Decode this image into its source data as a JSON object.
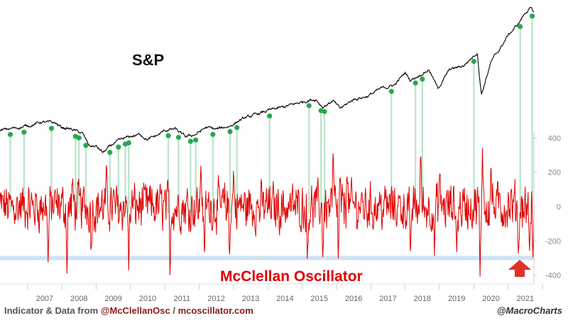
{
  "chart_data": {
    "type": "line",
    "panels": [
      {
        "name": "S&P",
        "label": "S&P",
        "axis": "hidden",
        "color": "#000000"
      },
      {
        "name": "McClellan Oscillator",
        "label": "McClellan Oscillator",
        "color": "#e00000",
        "y_ticks": [
          "400",
          "200",
          "0",
          "-200",
          "-400"
        ],
        "ylim": [
          -420,
          420
        ],
        "threshold": -300,
        "threshold_color": "#cfe3f5"
      }
    ],
    "x_ticks": [
      "2007",
      "2008",
      "2009",
      "2010",
      "2011",
      "2012",
      "2013",
      "2014",
      "2015",
      "2016",
      "2017",
      "2018",
      "2019",
      "2020",
      "2021"
    ],
    "xlim": [
      2006.2,
      2021.75
    ],
    "sp_anchors": [
      [
        2006.2,
        1.3
      ],
      [
        2006.6,
        1.36
      ],
      [
        2007.0,
        1.42
      ],
      [
        2007.4,
        1.52
      ],
      [
        2007.8,
        1.5
      ],
      [
        2008.0,
        1.38
      ],
      [
        2008.3,
        1.33
      ],
      [
        2008.6,
        1.22
      ],
      [
        2008.8,
        0.9
      ],
      [
        2009.0,
        0.88
      ],
      [
        2009.2,
        0.72
      ],
      [
        2009.5,
        0.95
      ],
      [
        2009.8,
        1.08
      ],
      [
        2010.0,
        1.14
      ],
      [
        2010.3,
        1.2
      ],
      [
        2010.5,
        1.06
      ],
      [
        2010.8,
        1.18
      ],
      [
        2011.0,
        1.3
      ],
      [
        2011.3,
        1.34
      ],
      [
        2011.6,
        1.13
      ],
      [
        2011.9,
        1.2
      ],
      [
        2012.2,
        1.38
      ],
      [
        2012.5,
        1.33
      ],
      [
        2012.9,
        1.42
      ],
      [
        2013.2,
        1.58
      ],
      [
        2013.6,
        1.7
      ],
      [
        2014.0,
        1.82
      ],
      [
        2014.4,
        1.9
      ],
      [
        2014.8,
        2.0
      ],
      [
        2015.2,
        2.1
      ],
      [
        2015.4,
        2.12
      ],
      [
        2015.6,
        1.92
      ],
      [
        2015.9,
        2.08
      ],
      [
        2016.1,
        1.87
      ],
      [
        2016.5,
        2.12
      ],
      [
        2016.9,
        2.2
      ],
      [
        2017.3,
        2.4
      ],
      [
        2017.7,
        2.5
      ],
      [
        2018.0,
        2.82
      ],
      [
        2018.15,
        2.62
      ],
      [
        2018.7,
        2.9
      ],
      [
        2018.95,
        2.4
      ],
      [
        2019.3,
        2.9
      ],
      [
        2019.7,
        3.0
      ],
      [
        2020.1,
        3.35
      ],
      [
        2020.22,
        2.25
      ],
      [
        2020.5,
        3.1
      ],
      [
        2020.8,
        3.5
      ],
      [
        2021.0,
        3.8
      ],
      [
        2021.3,
        4.1
      ],
      [
        2021.5,
        4.4
      ],
      [
        2021.65,
        4.5
      ],
      [
        2021.75,
        4.4
      ]
    ],
    "signals": [
      2006.5,
      2006.9,
      2007.7,
      2008.4,
      2008.5,
      2008.7,
      2009.4,
      2009.65,
      2009.85,
      2009.95,
      2011.1,
      2011.4,
      2011.75,
      2011.9,
      2012.4,
      2012.9,
      2013.1,
      2014.05,
      2015.2,
      2015.55,
      2015.65,
      2017.6,
      2018.3,
      2018.5,
      2020.0,
      2021.35,
      2021.7
    ],
    "osc_spikes": [
      [
        2007.6,
        -330
      ],
      [
        2008.15,
        -400
      ],
      [
        2008.85,
        -300
      ],
      [
        2009.95,
        -410
      ],
      [
        2011.15,
        -420
      ],
      [
        2012.15,
        -280
      ],
      [
        2012.88,
        -330
      ],
      [
        2015.15,
        -320
      ],
      [
        2015.6,
        -300
      ],
      [
        2016.05,
        -330
      ],
      [
        2018.15,
        -330
      ],
      [
        2018.85,
        -300
      ],
      [
        2019.5,
        -280
      ],
      [
        2020.18,
        -420
      ],
      [
        2021.3,
        -300
      ],
      [
        2021.62,
        -290
      ],
      [
        2021.72,
        -310
      ],
      [
        2008.3,
        160
      ],
      [
        2009.3,
        250
      ],
      [
        2012.05,
        260
      ],
      [
        2013.0,
        210
      ],
      [
        2015.9,
        330
      ],
      [
        2016.3,
        240
      ],
      [
        2018.45,
        360
      ],
      [
        2020.25,
        360
      ],
      [
        2020.5,
        280
      ],
      [
        2016.1,
        180
      ],
      [
        2019.0,
        220
      ]
    ],
    "arrow_color": "#e0302a",
    "annotations": []
  },
  "footer": {
    "prefix": "Indicator & Data from ",
    "handle": "@McClellanOsc",
    "sep": " / ",
    "site": "mcoscillator.com",
    "credit": "@MacroCharts"
  }
}
